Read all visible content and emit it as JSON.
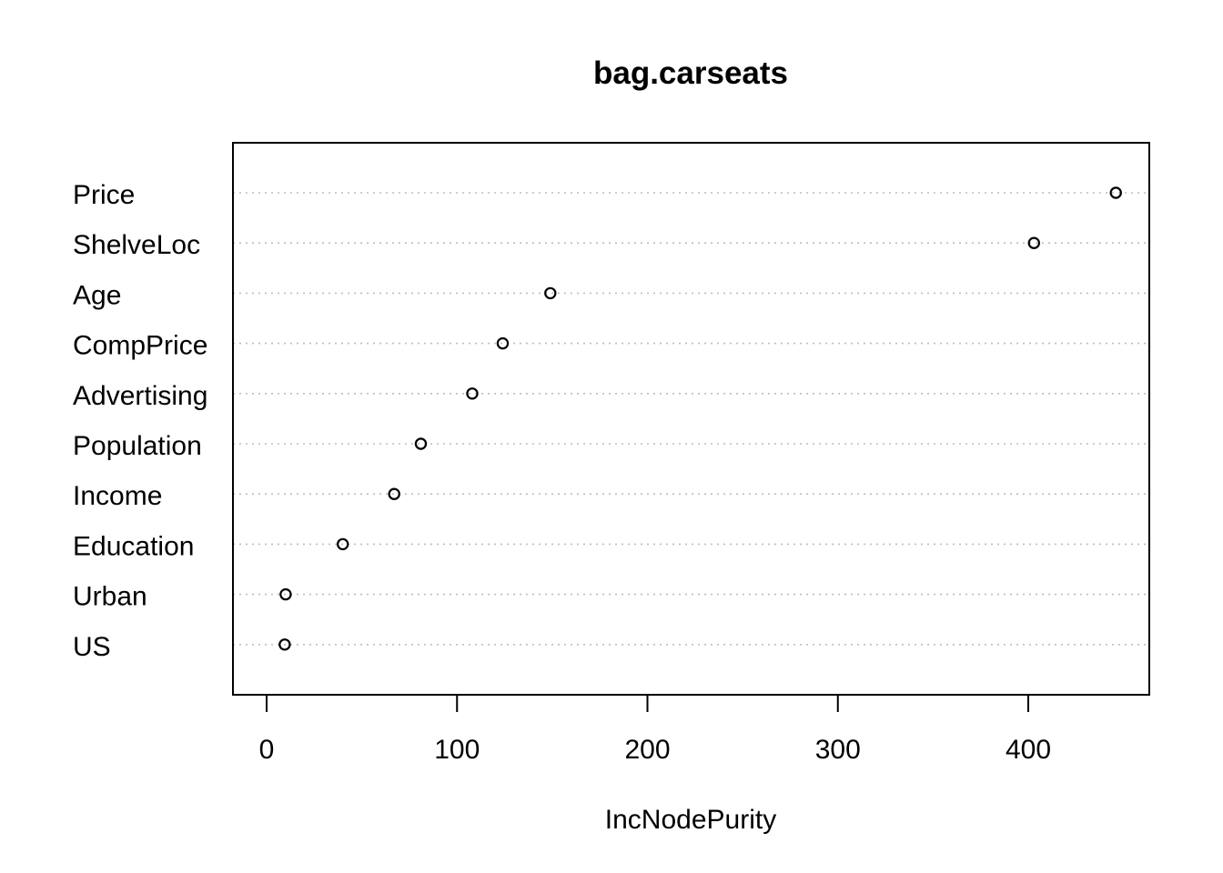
{
  "chart_data": {
    "type": "scatter",
    "title": "bag.carseats",
    "xlabel": "IncNodePurity",
    "ylabel": "",
    "xlim": [
      0,
      460
    ],
    "xticks": [
      0,
      100,
      200,
      300,
      400
    ],
    "grid": true,
    "categories": [
      "Price",
      "ShelveLoc",
      "Age",
      "CompPrice",
      "Advertising",
      "Population",
      "Income",
      "Education",
      "Urban",
      "US"
    ],
    "series": [
      {
        "values": [
          446,
          403,
          149,
          124,
          108,
          81,
          67,
          40,
          10,
          9.5
        ]
      }
    ]
  }
}
